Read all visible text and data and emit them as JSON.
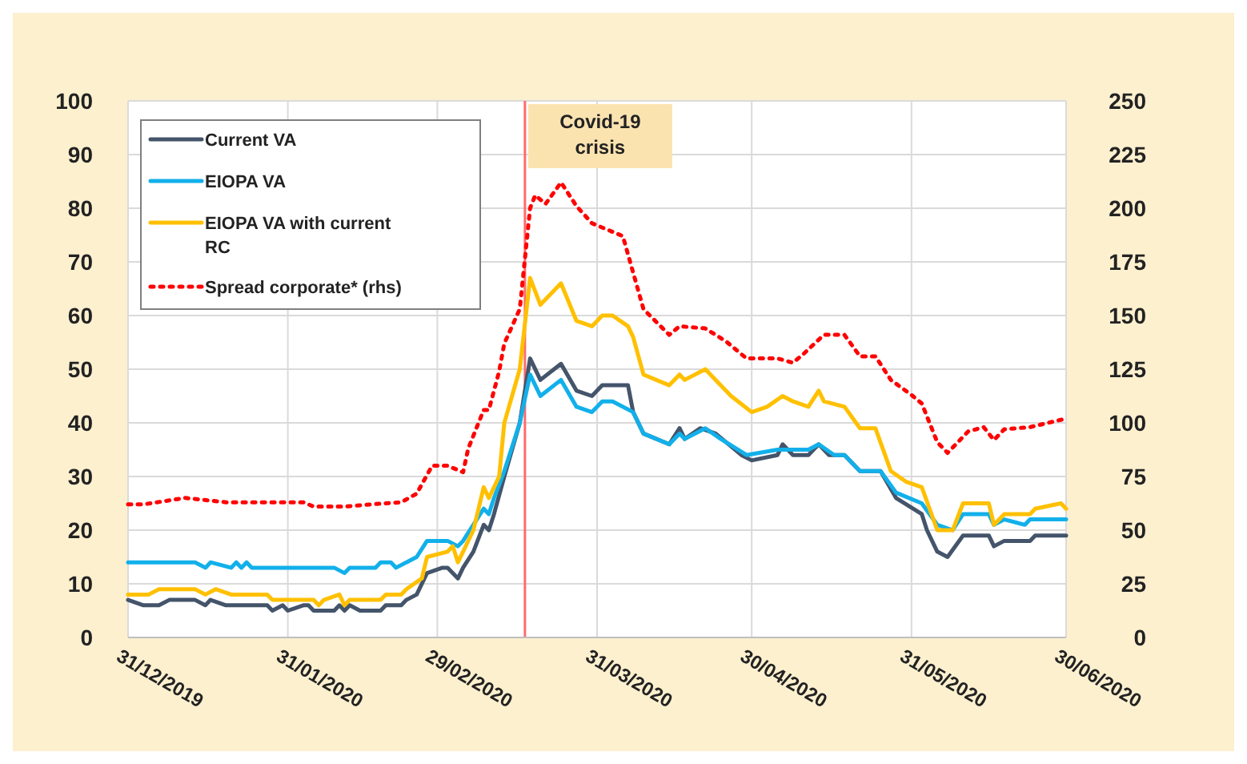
{
  "chart_data": {
    "type": "line",
    "xlim": [
      "2019-12-31",
      "2020-06-30"
    ],
    "xticks": [
      {
        "value": "2019-12-31",
        "label": "31/12/2019"
      },
      {
        "value": "2020-01-31",
        "label": "31/01/2020"
      },
      {
        "value": "2020-02-29",
        "label": "29/02/2020"
      },
      {
        "value": "2020-03-31",
        "label": "31/03/2020"
      },
      {
        "value": "2020-04-30",
        "label": "30/04/2020"
      },
      {
        "value": "2020-05-31",
        "label": "31/05/2020"
      },
      {
        "value": "2020-06-30",
        "label": "30/06/2020"
      }
    ],
    "ylim": [
      0,
      100
    ],
    "yticks": [
      0,
      10,
      20,
      30,
      40,
      50,
      60,
      70,
      80,
      90,
      100
    ],
    "y2lim": [
      0,
      250
    ],
    "y2ticks": [
      0,
      25,
      50,
      75,
      100,
      125,
      150,
      175,
      200,
      225,
      250
    ],
    "grid": true,
    "legend": "top left",
    "marker": "none",
    "ref_lines": [
      {
        "axis": "x",
        "value": "2020-03-17",
        "label": "Covid-19 crisis",
        "color": "#ff6b6b"
      }
    ],
    "series": [
      {
        "name": "Current VA",
        "color": "#44546a",
        "x": [
          "2019-12-31",
          "2020-01-03",
          "2020-01-06",
          "2020-01-08",
          "2020-01-13",
          "2020-01-15",
          "2020-01-16",
          "2020-01-19",
          "2020-01-27",
          "2020-01-28",
          "2020-01-30",
          "2020-01-31",
          "2020-02-03",
          "2020-02-04",
          "2020-02-05",
          "2020-02-09",
          "2020-02-10",
          "2020-02-11",
          "2020-02-12",
          "2020-02-14",
          "2020-02-18",
          "2020-02-19",
          "2020-02-22",
          "2020-02-23",
          "2020-02-25",
          "2020-02-27",
          "2020-03-01",
          "2020-03-02",
          "2020-03-04",
          "2020-03-05",
          "2020-03-07",
          "2020-03-09",
          "2020-03-10",
          "2020-03-11",
          "2020-03-13",
          "2020-03-16",
          "2020-03-18",
          "2020-03-20",
          "2020-03-24",
          "2020-03-27",
          "2020-03-30",
          "2020-04-01",
          "2020-04-06",
          "2020-04-07",
          "2020-04-09",
          "2020-04-14",
          "2020-04-16",
          "2020-04-17",
          "2020-04-20",
          "2020-04-23",
          "2020-04-28",
          "2020-04-30",
          "2020-05-05",
          "2020-05-06",
          "2020-05-08",
          "2020-05-11",
          "2020-05-13",
          "2020-05-15",
          "2020-05-18",
          "2020-05-21",
          "2020-05-25",
          "2020-05-28",
          "2020-06-02",
          "2020-06-03",
          "2020-06-05",
          "2020-06-07",
          "2020-06-10",
          "2020-06-15",
          "2020-06-16",
          "2020-06-18",
          "2020-06-23",
          "2020-06-24",
          "2020-06-30"
        ],
        "values": [
          7,
          6,
          6,
          7,
          7,
          6,
          7,
          6,
          6,
          5,
          6,
          5,
          6,
          6,
          5,
          5,
          6,
          5,
          6,
          5,
          5,
          6,
          6,
          7,
          8,
          12,
          13,
          13,
          11,
          13,
          16,
          21,
          20,
          23,
          30,
          40,
          52,
          48,
          51,
          46,
          45,
          47,
          47,
          42,
          38,
          36,
          39,
          37,
          39,
          38,
          34,
          33,
          34,
          36,
          34,
          34,
          36,
          34,
          34,
          31,
          31,
          26,
          23,
          20,
          16,
          15,
          19,
          19,
          17,
          18,
          18,
          19,
          19
        ]
      },
      {
        "name": "EIOPA VA",
        "color": "#12b0ea",
        "x": [
          "2019-12-31",
          "2020-01-13",
          "2020-01-15",
          "2020-01-16",
          "2020-01-20",
          "2020-01-21",
          "2020-01-22",
          "2020-01-23",
          "2020-01-24",
          "2020-02-09",
          "2020-02-11",
          "2020-02-12",
          "2020-02-17",
          "2020-02-18",
          "2020-02-20",
          "2020-02-21",
          "2020-02-25",
          "2020-02-27",
          "2020-03-02",
          "2020-03-04",
          "2020-03-05",
          "2020-03-09",
          "2020-03-10",
          "2020-03-11",
          "2020-03-13",
          "2020-03-16",
          "2020-03-18",
          "2020-03-20",
          "2020-03-24",
          "2020-03-27",
          "2020-03-30",
          "2020-04-01",
          "2020-04-03",
          "2020-04-07",
          "2020-04-09",
          "2020-04-14",
          "2020-04-16",
          "2020-04-17",
          "2020-04-21",
          "2020-04-24",
          "2020-04-29",
          "2020-05-05",
          "2020-05-06",
          "2020-05-11",
          "2020-05-13",
          "2020-05-16",
          "2020-05-18",
          "2020-05-21",
          "2020-05-25",
          "2020-05-28",
          "2020-06-02",
          "2020-06-05",
          "2020-06-08",
          "2020-06-10",
          "2020-06-15",
          "2020-06-16",
          "2020-06-18",
          "2020-06-22",
          "2020-06-23",
          "2020-06-30"
        ],
        "values": [
          14,
          14,
          13,
          14,
          13,
          14,
          13,
          14,
          13,
          13,
          12,
          13,
          13,
          14,
          14,
          13,
          15,
          18,
          18,
          17,
          18,
          24,
          23,
          26,
          31,
          40,
          49,
          45,
          48,
          43,
          42,
          44,
          44,
          42,
          38,
          36,
          38,
          37,
          39,
          37,
          34,
          35,
          35,
          35,
          36,
          34,
          34,
          31,
          31,
          27,
          25,
          21,
          20,
          23,
          23,
          21,
          22,
          21,
          22,
          22
        ]
      },
      {
        "name": "EIOPA VA with current RC",
        "color": "#ffc000",
        "x": [
          "2019-12-31",
          "2020-01-04",
          "2020-01-06",
          "2020-01-13",
          "2020-01-15",
          "2020-01-17",
          "2020-01-20",
          "2020-01-27",
          "2020-01-28",
          "2020-02-05",
          "2020-02-06",
          "2020-02-07",
          "2020-02-10",
          "2020-02-11",
          "2020-02-12",
          "2020-02-18",
          "2020-02-19",
          "2020-02-22",
          "2020-02-23",
          "2020-02-26",
          "2020-02-27",
          "2020-03-02",
          "2020-03-03",
          "2020-03-04",
          "2020-03-05",
          "2020-03-07",
          "2020-03-09",
          "2020-03-10",
          "2020-03-12",
          "2020-03-13",
          "2020-03-16",
          "2020-03-18",
          "2020-03-20",
          "2020-03-24",
          "2020-03-27",
          "2020-03-30",
          "2020-04-01",
          "2020-04-03",
          "2020-04-06",
          "2020-04-07",
          "2020-04-09",
          "2020-04-14",
          "2020-04-16",
          "2020-04-17",
          "2020-04-21",
          "2020-04-23",
          "2020-04-26",
          "2020-04-30",
          "2020-05-03",
          "2020-05-06",
          "2020-05-08",
          "2020-05-11",
          "2020-05-13",
          "2020-05-14",
          "2020-05-18",
          "2020-05-21",
          "2020-05-24",
          "2020-05-27",
          "2020-05-30",
          "2020-06-02",
          "2020-06-05",
          "2020-06-08",
          "2020-06-10",
          "2020-06-15",
          "2020-06-16",
          "2020-06-18",
          "2020-06-23",
          "2020-06-24",
          "2020-06-29",
          "2020-06-30"
        ],
        "values": [
          8,
          8,
          9,
          9,
          8,
          9,
          8,
          8,
          7,
          7,
          6,
          7,
          8,
          6,
          7,
          7,
          8,
          8,
          9,
          11,
          15,
          16,
          17,
          14,
          16,
          20,
          28,
          26,
          30,
          40,
          50,
          67,
          62,
          66,
          59,
          58,
          60,
          60,
          58,
          56,
          49,
          47,
          49,
          48,
          50,
          48,
          45,
          42,
          43,
          45,
          44,
          43,
          46,
          44,
          43,
          39,
          39,
          31,
          29,
          28,
          20,
          20,
          25,
          25,
          21,
          23,
          23,
          24,
          25,
          24
        ]
      },
      {
        "name": "Spread corporate* (rhs)",
        "color": "#ff0000",
        "axis": "y2",
        "line_style": "dotted",
        "x": [
          "2019-12-31",
          "2020-01-03",
          "2020-01-11",
          "2020-01-19",
          "2020-02-03",
          "2020-02-05",
          "2020-02-11",
          "2020-02-16",
          "2020-02-22",
          "2020-02-25",
          "2020-02-28",
          "2020-03-02",
          "2020-03-05",
          "2020-03-06",
          "2020-03-09",
          "2020-03-10",
          "2020-03-12",
          "2020-03-13",
          "2020-03-16",
          "2020-03-18",
          "2020-03-19",
          "2020-03-21",
          "2020-03-24",
          "2020-03-27",
          "2020-03-30",
          "2020-04-05",
          "2020-04-09",
          "2020-04-14",
          "2020-04-16",
          "2020-04-21",
          "2020-04-25",
          "2020-04-29",
          "2020-05-05",
          "2020-05-08",
          "2020-05-10",
          "2020-05-14",
          "2020-05-18",
          "2020-05-21",
          "2020-05-24",
          "2020-05-27",
          "2020-05-31",
          "2020-06-02",
          "2020-06-05",
          "2020-06-07",
          "2020-06-11",
          "2020-06-14",
          "2020-06-16",
          "2020-06-18",
          "2020-06-23",
          "2020-06-30"
        ],
        "values": [
          62,
          62,
          65,
          63,
          63,
          61,
          61,
          62,
          63,
          67,
          80,
          80,
          77,
          88,
          106,
          106,
          124,
          137,
          153,
          200,
          206,
          202,
          212,
          201,
          193,
          187,
          153,
          141,
          145,
          144,
          138,
          130,
          130,
          128,
          132,
          141,
          141,
          131,
          131,
          120,
          113,
          109,
          91,
          86,
          96,
          98,
          92,
          97,
          98,
          102
        ]
      }
    ]
  }
}
